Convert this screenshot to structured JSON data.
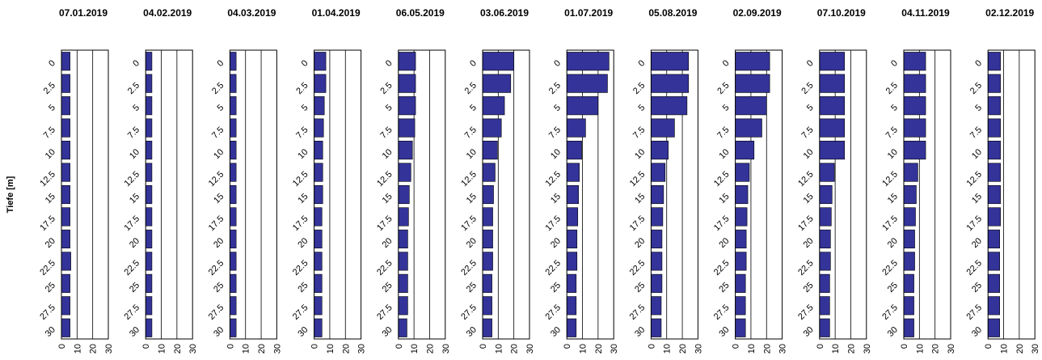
{
  "chart_data": {
    "type": "bar",
    "orientation": "horizontal",
    "ylabel": "Tiefe [m]",
    "xlim": [
      0,
      30
    ],
    "x_ticks": [
      "0",
      "10",
      "20",
      "30"
    ],
    "depths": [
      0,
      2.5,
      5,
      7.5,
      10,
      12.5,
      15,
      17.5,
      20,
      22.5,
      25,
      27.5,
      30
    ],
    "depth_labels": [
      "0",
      "2.5",
      "5",
      "7.5",
      "10",
      "12.5",
      "15",
      "17.5",
      "20",
      "22.5",
      "25",
      "27.5",
      "30"
    ],
    "grid": "vertical",
    "colors": {
      "bar": "#333399"
    },
    "panels": [
      {
        "title": "07.01.2019",
        "values": [
          5.5,
          5.5,
          5.5,
          5.5,
          5.5,
          5.5,
          5.5,
          5.5,
          5.5,
          6,
          5.5,
          5.5,
          5.5
        ]
      },
      {
        "title": "04.02.2019",
        "values": [
          4,
          4,
          4,
          4,
          4,
          4,
          4,
          4,
          4,
          4,
          4,
          4,
          4
        ]
      },
      {
        "title": "04.03.2019",
        "values": [
          4,
          4,
          4,
          4,
          4,
          4,
          4,
          4,
          4,
          4,
          4,
          4,
          4
        ]
      },
      {
        "title": "01.04.2019",
        "values": [
          7.5,
          7.5,
          6.5,
          6,
          5.5,
          5.5,
          5.5,
          5,
          5,
          5,
          5,
          5,
          5
        ]
      },
      {
        "title": "06.05.2019",
        "values": [
          11,
          11,
          11,
          10.5,
          9,
          8,
          7,
          6.5,
          6,
          6,
          6,
          6,
          5.5
        ]
      },
      {
        "title": "03.06.2019",
        "values": [
          20,
          18,
          14,
          12,
          9.5,
          8,
          7,
          6.5,
          6.5,
          6.5,
          6,
          6,
          6
        ]
      },
      {
        "title": "01.07.2019",
        "values": [
          27,
          26,
          20,
          12,
          9.5,
          8,
          7.5,
          7,
          6.5,
          6.5,
          6,
          6,
          6
        ]
      },
      {
        "title": "05.08.2019",
        "values": [
          24,
          24,
          23,
          15,
          11,
          9,
          8,
          7.5,
          7,
          7,
          7,
          6.5,
          6.5
        ]
      },
      {
        "title": "02.09.2019",
        "values": [
          22,
          22,
          20,
          17,
          12,
          9,
          8,
          7.5,
          7,
          7,
          6.5,
          6.5,
          6.5
        ]
      },
      {
        "title": "07.10.2019",
        "values": [
          16,
          16,
          16,
          16,
          16,
          9.5,
          8,
          7.5,
          7,
          7,
          6.5,
          6.5,
          6.5
        ]
      },
      {
        "title": "04.11.2019",
        "values": [
          14,
          14,
          14,
          14,
          14,
          9,
          8,
          7.5,
          7,
          7,
          6.5,
          6.5,
          6.5
        ]
      },
      {
        "title": "02.12.2019",
        "values": [
          8,
          8,
          8,
          8,
          8,
          8,
          8,
          8,
          7.5,
          7.5,
          7.5,
          7.5,
          7.5
        ]
      }
    ]
  }
}
